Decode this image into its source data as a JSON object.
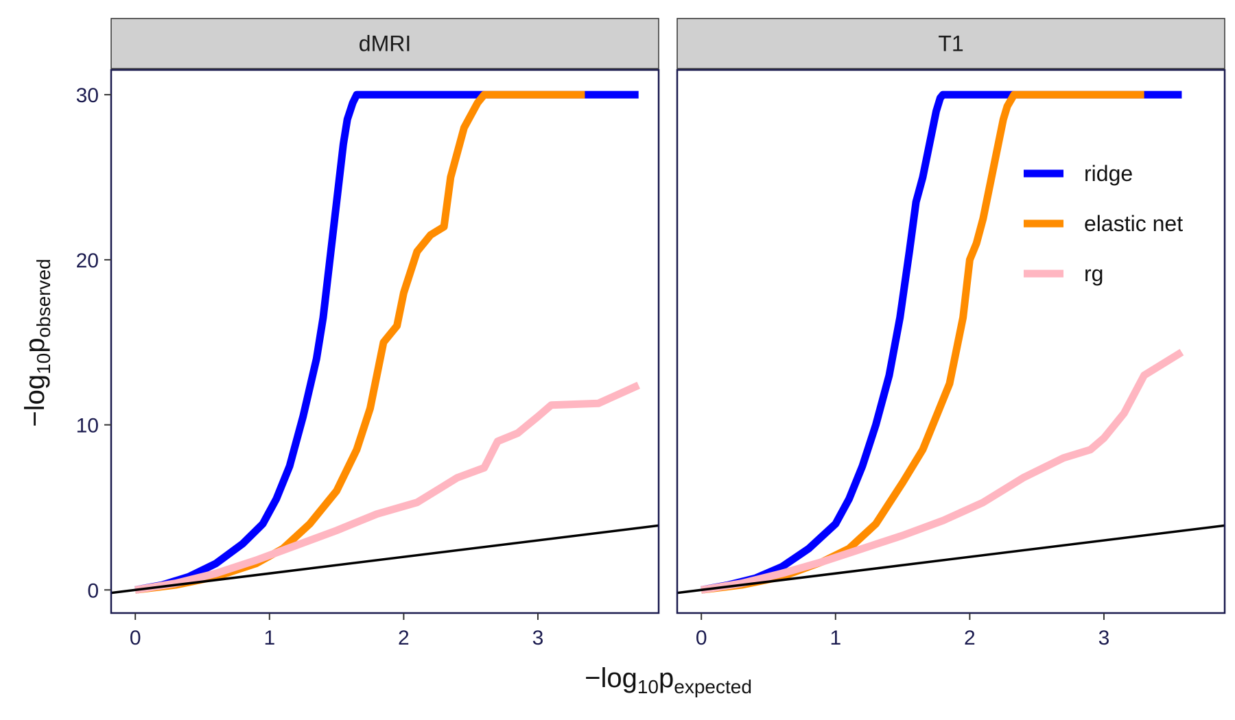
{
  "chart_data": {
    "type": "line",
    "xlabel": {
      "main": "−log",
      "sub": "10",
      "p": "p",
      "sub2": "expected"
    },
    "ylabel": {
      "main": "−log",
      "sub": "10",
      "p": "p",
      "sub2": "observed"
    },
    "xlim": [
      -0.18,
      3.9
    ],
    "ylim": [
      -1.4,
      31.5
    ],
    "x_ticks": [
      0,
      1,
      2,
      3
    ],
    "y_ticks": [
      0,
      10,
      20,
      30
    ],
    "legend": {
      "position": "top-right",
      "items": [
        {
          "label": "ridge",
          "color": "#0000ff"
        },
        {
          "label": "elastic net",
          "color": "#ff8c00"
        },
        {
          "label": "rg",
          "color": "#ffb6c1"
        }
      ]
    },
    "reference_line": {
      "slope": 1,
      "intercept": 0,
      "color": "#000000"
    },
    "panels": [
      {
        "title": "dMRI",
        "series": [
          {
            "name": "ridge",
            "color": "#0000ff",
            "x": [
              0,
              0.2,
              0.4,
              0.6,
              0.8,
              0.95,
              1.05,
              1.15,
              1.25,
              1.35,
              1.4,
              1.45,
              1.5,
              1.55,
              1.58,
              1.62,
              1.65,
              1.7,
              3.75
            ],
            "y": [
              0,
              0.3,
              0.8,
              1.6,
              2.8,
              4.0,
              5.5,
              7.5,
              10.5,
              14.0,
              16.5,
              20.0,
              23.5,
              27.0,
              28.5,
              29.5,
              30,
              30,
              30
            ]
          },
          {
            "name": "elastic net",
            "color": "#ff8c00",
            "x": [
              0,
              0.3,
              0.6,
              0.9,
              1.1,
              1.3,
              1.5,
              1.65,
              1.75,
              1.85,
              1.95,
              2.0,
              2.1,
              2.2,
              2.3,
              2.35,
              2.45,
              2.55,
              2.6,
              3.35
            ],
            "y": [
              0,
              0.3,
              0.8,
              1.6,
              2.5,
              4.0,
              6.0,
              8.5,
              11.0,
              15.0,
              16.0,
              18.0,
              20.5,
              21.5,
              22.0,
              25.0,
              28.0,
              29.5,
              30,
              30
            ]
          },
          {
            "name": "rg",
            "color": "#ffb6c1",
            "x": [
              0,
              0.3,
              0.6,
              0.9,
              1.2,
              1.5,
              1.8,
              2.1,
              2.4,
              2.6,
              2.7,
              2.85,
              3.0,
              3.1,
              3.45,
              3.75
            ],
            "y": [
              0,
              0.4,
              1.0,
              1.8,
              2.7,
              3.6,
              4.6,
              5.3,
              6.8,
              7.4,
              9.0,
              9.5,
              10.5,
              11.2,
              11.3,
              12.4
            ]
          }
        ]
      },
      {
        "title": "T1",
        "series": [
          {
            "name": "ridge",
            "color": "#0000ff",
            "x": [
              0,
              0.2,
              0.4,
              0.6,
              0.8,
              1.0,
              1.1,
              1.2,
              1.3,
              1.4,
              1.48,
              1.55,
              1.6,
              1.65,
              1.7,
              1.75,
              1.78,
              1.8,
              3.58
            ],
            "y": [
              0,
              0.3,
              0.7,
              1.4,
              2.5,
              4.0,
              5.5,
              7.5,
              10.0,
              13.0,
              16.5,
              20.5,
              23.5,
              25.0,
              27.0,
              29.0,
              29.8,
              30,
              30
            ]
          },
          {
            "name": "elastic net",
            "color": "#ff8c00",
            "x": [
              0,
              0.3,
              0.6,
              0.9,
              1.1,
              1.3,
              1.5,
              1.65,
              1.75,
              1.85,
              1.95,
              2.0,
              2.05,
              2.1,
              2.2,
              2.25,
              2.28,
              2.33,
              3.3
            ],
            "y": [
              0,
              0.3,
              0.8,
              1.7,
              2.5,
              4.0,
              6.5,
              8.5,
              10.5,
              12.5,
              16.5,
              20.0,
              21.0,
              22.5,
              26.5,
              28.5,
              29.3,
              30,
              30
            ]
          },
          {
            "name": "rg",
            "color": "#ffb6c1",
            "x": [
              0,
              0.3,
              0.6,
              0.9,
              1.2,
              1.5,
              1.8,
              2.1,
              2.4,
              2.7,
              2.9,
              3.0,
              3.1,
              3.15,
              3.3,
              3.58
            ],
            "y": [
              0,
              0.4,
              1.0,
              1.7,
              2.5,
              3.3,
              4.2,
              5.3,
              6.8,
              8.0,
              8.5,
              9.2,
              10.2,
              10.7,
              13.0,
              14.4
            ]
          }
        ]
      }
    ]
  }
}
